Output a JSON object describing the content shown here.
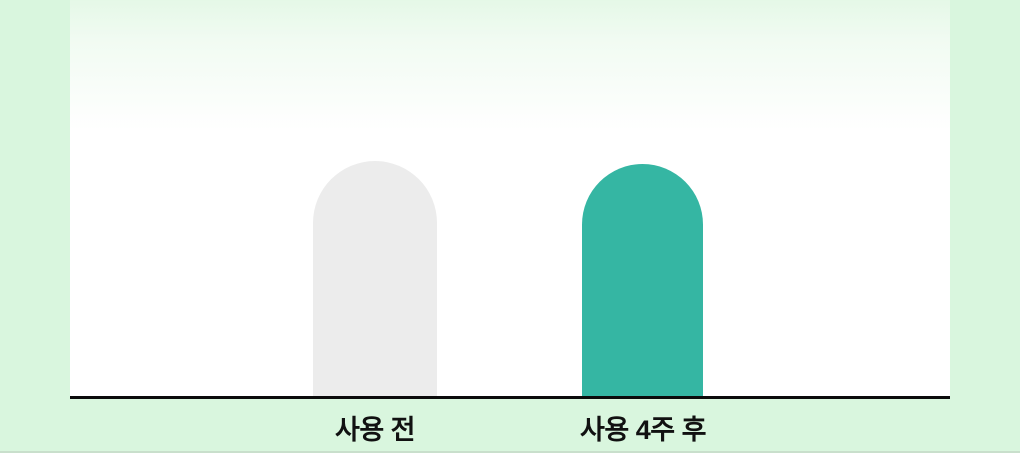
{
  "chart_data": {
    "type": "bar",
    "categories": [
      "사용 전",
      "사용 4주 후"
    ],
    "values": [
      235,
      232
    ],
    "value_unit": "px",
    "value_axis_visible": false,
    "note": "no numeric axis, gridlines or data labels shown; values are rendered bar heights",
    "title": "",
    "xlabel": "",
    "ylabel": "",
    "bar_colors": [
      "#ececec",
      "#35b6a3"
    ],
    "legend": null,
    "grid": false
  },
  "colors": {
    "page_background": "#d9f6de",
    "panel_top_tint": "#e5f8e7",
    "panel_background": "#ffffff",
    "bar_before": "#ececec",
    "bar_after": "#35b6a3",
    "axis_line": "#0b0b0b",
    "label_text": "#111111",
    "bottom_edge_line": "#c9dfcc"
  }
}
